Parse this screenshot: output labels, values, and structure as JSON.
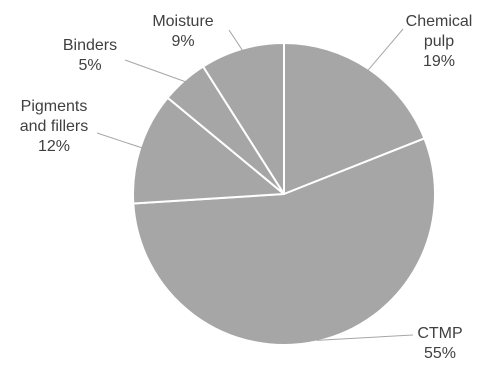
{
  "chart_data": {
    "type": "pie",
    "title": "",
    "colors": {
      "slice_fill": "#a6a6a6",
      "slice_border": "#ffffff",
      "leader_line": "#a6a6a6",
      "label_text": "#404040"
    },
    "slices": [
      {
        "name": "Chemical pulp",
        "name_lines": [
          "Chemical",
          "pulp"
        ],
        "value": 19,
        "label": "19%"
      },
      {
        "name": "CTMP",
        "name_lines": [
          "CTMP"
        ],
        "value": 55,
        "label": "55%"
      },
      {
        "name": "Pigments and fillers",
        "name_lines": [
          "Pigments",
          "and fillers"
        ],
        "value": 12,
        "label": "12%"
      },
      {
        "name": "Binders",
        "name_lines": [
          "Binders"
        ],
        "value": 5,
        "label": "5%"
      },
      {
        "name": "Moisture",
        "name_lines": [
          "Moisture"
        ],
        "value": 9,
        "label": "9%"
      }
    ]
  }
}
